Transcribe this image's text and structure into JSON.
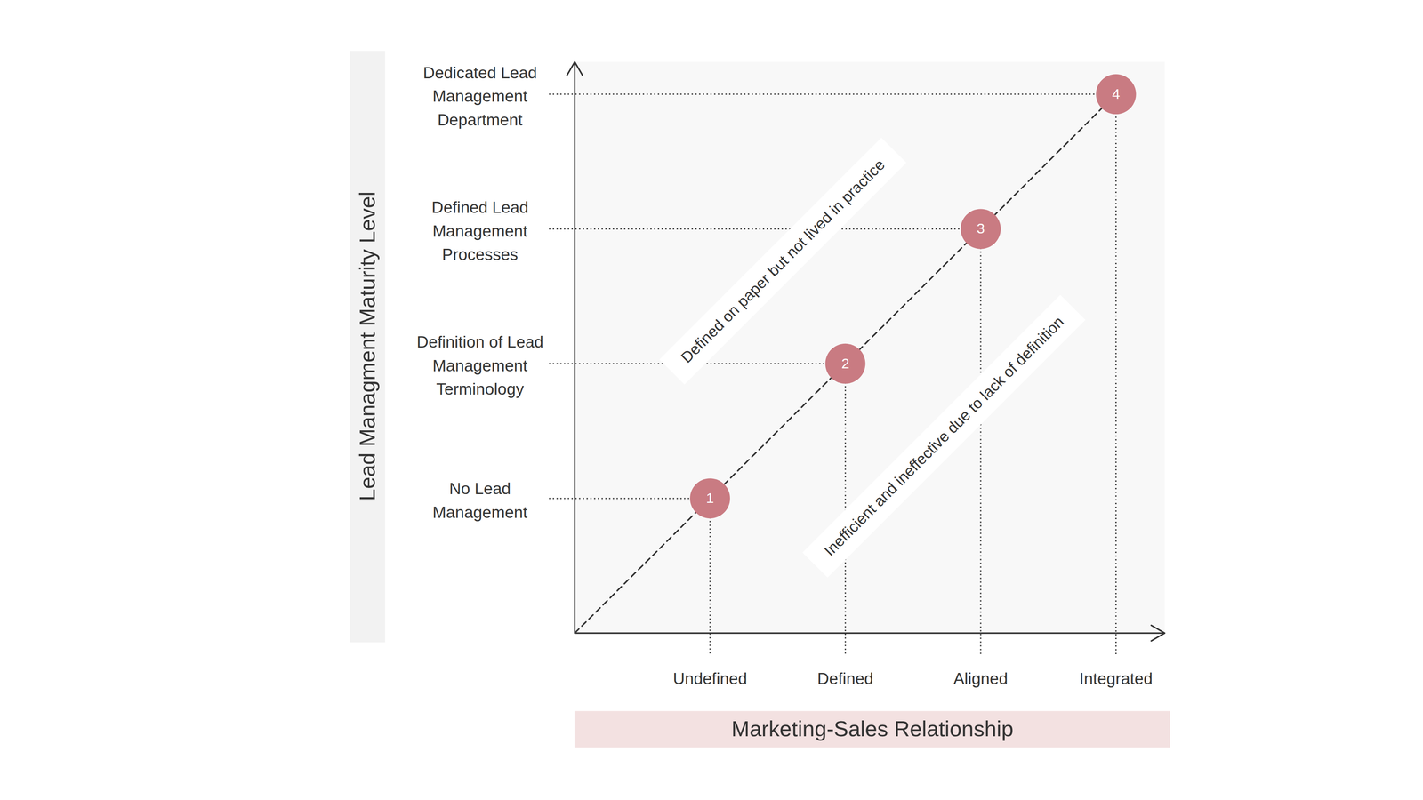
{
  "chart_data": {
    "type": "scatter",
    "x_label": "Marketing-Sales Relationship",
    "y_label": "Lead Managment Maturity Level",
    "x_categories": [
      "Undefined",
      "Defined",
      "Aligned",
      "Integrated"
    ],
    "y_categories": [
      "No Lead\nManagement",
      "Definition of Lead\nManagement\nTerminology",
      "Defined Lead\nManagement\nProcesses",
      "Dedicated Lead\nManagement\nDepartment"
    ],
    "points": [
      {
        "label": "1",
        "x": "Undefined",
        "y": "No Lead\nManagement"
      },
      {
        "label": "2",
        "x": "Defined",
        "y": "Definition of Lead\nManagement\nTerminology"
      },
      {
        "label": "3",
        "x": "Aligned",
        "y": "Defined Lead\nManagement\nProcesses"
      },
      {
        "label": "4",
        "x": "Integrated",
        "y": "Dedicated Lead\nManagement\nDepartment"
      }
    ],
    "color": "#c97b82",
    "line_style": "dashed",
    "annotations": [
      "Defined on paper but not lived in practice",
      "Inefficient and ineffective due to lack of definition"
    ]
  }
}
